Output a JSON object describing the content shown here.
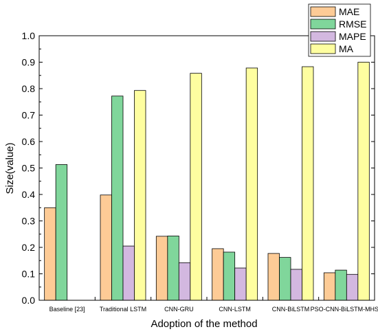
{
  "chart_data": {
    "type": "bar",
    "xlabel": "Adoption of the method",
    "ylabel": "Size(value)",
    "ylim": [
      0,
      1.0
    ],
    "yticks": [
      "0.0",
      "0.1",
      "0.2",
      "0.3",
      "0.4",
      "0.5",
      "0.6",
      "0.7",
      "0.8",
      "0.9",
      "1.0"
    ],
    "grid": false,
    "legend_position": "top-right",
    "categories": [
      "Baseline [23]",
      "Traditional LSTM",
      "CNN-GRU",
      "CNN-LSTM",
      "CNN-BiLSTM",
      "PSO-CNN-BiLSTM-MHSA"
    ],
    "series": [
      {
        "name": "MAE",
        "color": "#fdcb96",
        "values": [
          0.35,
          0.398,
          0.242,
          0.195,
          0.177,
          0.104
        ]
      },
      {
        "name": "RMSE",
        "color": "#80d69b",
        "values": [
          0.513,
          0.772,
          0.243,
          0.182,
          0.162,
          0.114
        ]
      },
      {
        "name": "MAPE",
        "color": "#d3b8e0",
        "values": [
          null,
          0.205,
          0.142,
          0.122,
          0.117,
          0.098
        ]
      },
      {
        "name": "MA",
        "color": "#fefea0",
        "values": [
          null,
          0.793,
          0.858,
          0.878,
          0.883,
          0.9
        ]
      }
    ]
  }
}
